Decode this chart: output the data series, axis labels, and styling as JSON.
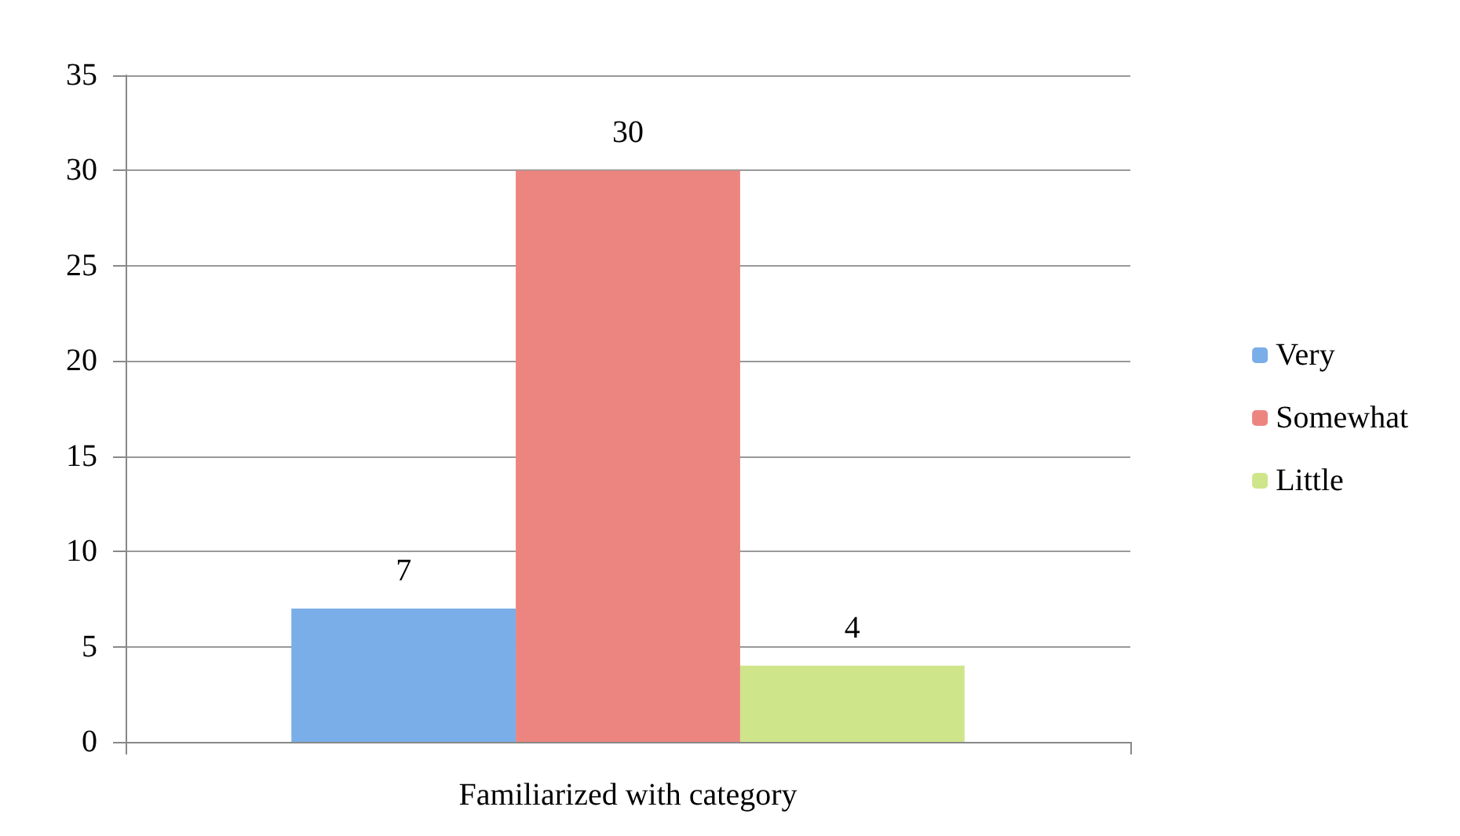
{
  "chart_data": {
    "type": "bar",
    "categories": [
      "Familiarized with category"
    ],
    "series": [
      {
        "name": "Very",
        "color": "#7aaee8",
        "values": [
          7
        ]
      },
      {
        "name": "Somewhat",
        "color": "#ec8580",
        "values": [
          30
        ]
      },
      {
        "name": "Little",
        "color": "#cfe58a",
        "values": [
          4
        ]
      }
    ],
    "ylim": [
      0,
      35
    ],
    "yticks": [
      0,
      5,
      10,
      15,
      20,
      25,
      30,
      35
    ],
    "grid": "y",
    "legend": "right",
    "data_labels": true
  }
}
